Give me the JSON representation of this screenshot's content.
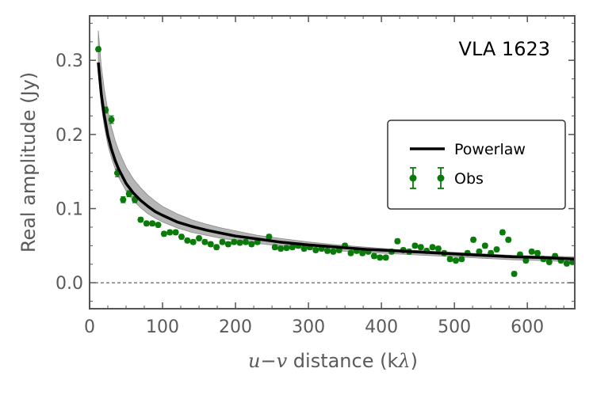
{
  "chart_data": {
    "type": "scatter",
    "annotation": "VLA 1623",
    "xlabel_parts": [
      "u",
      "−",
      "v",
      " distance (k",
      "λ",
      ")"
    ],
    "ylabel": "Real amplitude (Jy)",
    "xlim": [
      0,
      665
    ],
    "ylim": [
      -0.035,
      0.36
    ],
    "xticks": [
      0,
      100,
      200,
      300,
      400,
      500,
      600
    ],
    "xtick_labels": [
      "0",
      "100",
      "200",
      "300",
      "400",
      "500",
      "600"
    ],
    "yticks": [
      0.0,
      0.1,
      0.2,
      0.3
    ],
    "ytick_labels": [
      "0.0",
      "0.1",
      "0.2",
      "0.3"
    ],
    "zero_line": true,
    "legend": {
      "position": "center-right",
      "entries": [
        "Powerlaw",
        "Obs"
      ]
    },
    "colors": {
      "obs": "#0a7a0a",
      "model": "#000000",
      "band": "#a8a8a8",
      "axis": "#555555"
    },
    "model": {
      "name": "Powerlaw",
      "x": [
        12,
        16,
        20,
        25,
        30,
        35,
        40,
        50,
        60,
        70,
        80,
        90,
        100,
        120,
        140,
        160,
        180,
        200,
        230,
        260,
        300,
        340,
        380,
        420,
        460,
        500,
        540,
        580,
        620,
        665
      ],
      "y": [
        0.297,
        0.255,
        0.226,
        0.199,
        0.18,
        0.165,
        0.153,
        0.134,
        0.121,
        0.111,
        0.103,
        0.096,
        0.091,
        0.082,
        0.076,
        0.071,
        0.067,
        0.063,
        0.059,
        0.055,
        0.051,
        0.048,
        0.045,
        0.043,
        0.041,
        0.039,
        0.037,
        0.035,
        0.034,
        0.032
      ],
      "y_low": [
        0.282,
        0.24,
        0.212,
        0.186,
        0.168,
        0.154,
        0.142,
        0.124,
        0.111,
        0.101,
        0.093,
        0.087,
        0.082,
        0.074,
        0.068,
        0.064,
        0.06,
        0.057,
        0.053,
        0.05,
        0.046,
        0.043,
        0.041,
        0.039,
        0.037,
        0.035,
        0.033,
        0.031,
        0.03,
        0.028
      ],
      "y_high": [
        0.34,
        0.293,
        0.262,
        0.232,
        0.21,
        0.192,
        0.178,
        0.156,
        0.14,
        0.128,
        0.118,
        0.11,
        0.103,
        0.093,
        0.085,
        0.079,
        0.074,
        0.07,
        0.064,
        0.06,
        0.055,
        0.051,
        0.048,
        0.045,
        0.043,
        0.041,
        0.039,
        0.037,
        0.036,
        0.035
      ]
    },
    "observations": {
      "name": "Obs",
      "x": [
        12,
        22,
        30,
        38,
        46,
        54,
        62,
        70,
        78,
        86,
        94,
        102,
        110,
        118,
        126,
        134,
        142,
        150,
        158,
        166,
        174,
        182,
        190,
        198,
        206,
        214,
        222,
        230,
        246,
        254,
        262,
        270,
        278,
        286,
        294,
        302,
        310,
        318,
        326,
        334,
        342,
        350,
        358,
        366,
        374,
        382,
        390,
        398,
        406,
        414,
        422,
        430,
        438,
        446,
        454,
        462,
        470,
        478,
        486,
        494,
        502,
        510,
        518,
        526,
        534,
        542,
        550,
        558,
        566,
        574,
        582,
        590,
        598,
        606,
        614,
        622,
        630,
        638,
        646,
        654,
        662
      ],
      "y": [
        0.315,
        0.233,
        0.22,
        0.148,
        0.112,
        0.12,
        0.112,
        0.085,
        0.08,
        0.08,
        0.078,
        0.066,
        0.068,
        0.068,
        0.062,
        0.057,
        0.055,
        0.06,
        0.055,
        0.052,
        0.048,
        0.055,
        0.052,
        0.055,
        0.054,
        0.055,
        0.052,
        0.055,
        0.062,
        0.048,
        0.046,
        0.047,
        0.048,
        0.05,
        0.046,
        0.048,
        0.044,
        0.046,
        0.043,
        0.042,
        0.044,
        0.05,
        0.04,
        0.043,
        0.04,
        0.042,
        0.036,
        0.034,
        0.034,
        0.042,
        0.056,
        0.044,
        0.042,
        0.05,
        0.048,
        0.043,
        0.048,
        0.046,
        0.04,
        0.032,
        0.03,
        0.032,
        0.04,
        0.058,
        0.042,
        0.05,
        0.04,
        0.045,
        0.068,
        0.058,
        0.012,
        0.038,
        0.03,
        0.042,
        0.04,
        0.032,
        0.028,
        0.036,
        0.03,
        0.026,
        0.028
      ],
      "err": [
        0.003,
        0.004,
        0.005,
        0.005,
        0.004,
        0.004,
        0.004,
        0.003,
        0.003,
        0.003,
        0.003,
        0.003,
        0.003,
        0.003,
        0.003,
        0.003,
        0.003,
        0.003,
        0.003,
        0.003,
        0.003,
        0.003,
        0.003,
        0.003,
        0.003,
        0.003,
        0.003,
        0.003,
        0.003,
        0.003,
        0.003,
        0.003,
        0.003,
        0.003,
        0.003,
        0.003,
        0.003,
        0.003,
        0.003,
        0.003,
        0.003,
        0.003,
        0.003,
        0.003,
        0.003,
        0.003,
        0.003,
        0.003,
        0.003,
        0.003,
        0.003,
        0.003,
        0.003,
        0.003,
        0.003,
        0.003,
        0.003,
        0.003,
        0.003,
        0.003,
        0.003,
        0.003,
        0.003,
        0.003,
        0.003,
        0.003,
        0.003,
        0.003,
        0.003,
        0.003,
        0.003,
        0.003,
        0.003,
        0.003,
        0.003,
        0.003,
        0.003,
        0.003,
        0.003,
        0.003,
        0.003
      ]
    }
  }
}
